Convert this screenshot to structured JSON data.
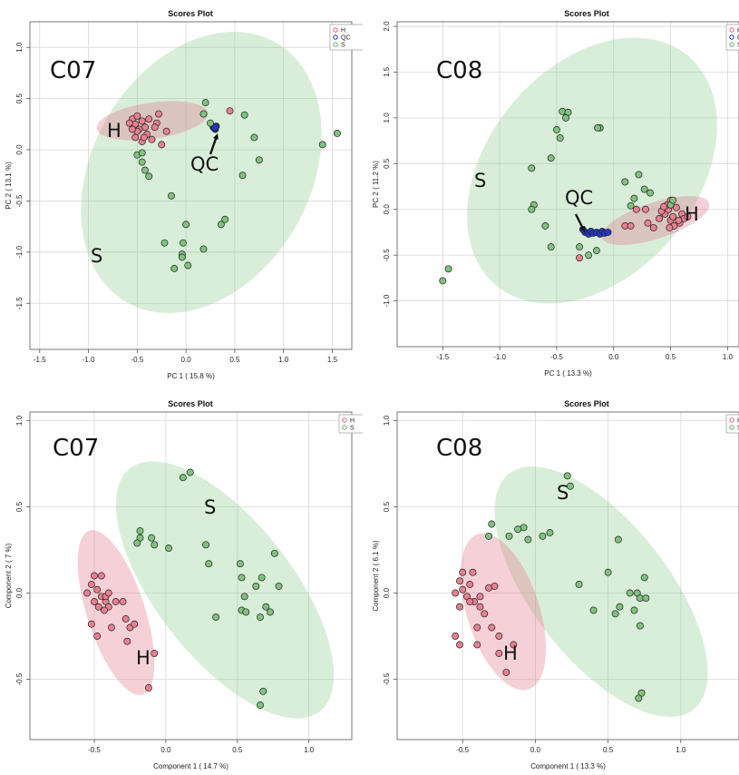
{
  "chart_data": [
    {
      "type": "scatter",
      "title": "Scores Plot",
      "xlabel": "PC 1 ( 15.8 %)",
      "ylabel": "PC 2 ( 13.1 %)",
      "xlim": [
        -1.6,
        1.7
      ],
      "ylim": [
        -1.95,
        1.25
      ],
      "xticks": [
        "-1.5",
        "-1.0",
        "-0.5",
        "0.0",
        "0.5",
        "1.0",
        "1.5"
      ],
      "yticks": [
        "1.0",
        "0.5",
        "0.0",
        "-0.5",
        "-1.0",
        "-1.5"
      ],
      "grid": true,
      "legend": "top-right",
      "panel_label": "C07",
      "annotations": [
        "H",
        "QC",
        "S"
      ],
      "series": [
        {
          "name": "H",
          "color": "#e0607a",
          "points": [
            [
              -0.55,
              0.3
            ],
            [
              -0.5,
              0.33
            ],
            [
              -0.45,
              0.28
            ],
            [
              -0.42,
              0.22
            ],
            [
              -0.4,
              0.15
            ],
            [
              -0.52,
              0.25
            ],
            [
              -0.48,
              0.2
            ],
            [
              -0.38,
              0.3
            ],
            [
              -0.3,
              0.26
            ],
            [
              -0.28,
              0.35
            ],
            [
              -0.2,
              0.18
            ],
            [
              -0.35,
              0.1
            ],
            [
              -0.45,
              0.08
            ],
            [
              -0.52,
              0.12
            ],
            [
              -0.58,
              0.26
            ],
            [
              -0.5,
              0.18
            ],
            [
              -0.43,
              0.12
            ],
            [
              -0.25,
              0.05
            ],
            [
              -0.32,
              0.22
            ],
            [
              0.45,
              0.38
            ],
            [
              -0.55,
              0.2
            ]
          ]
        },
        {
          "name": "QC",
          "color": "#2030c0",
          "points": [
            [
              0.28,
              0.22
            ],
            [
              0.3,
              0.2
            ],
            [
              0.31,
              0.23
            ],
            [
              0.29,
              0.21
            ],
            [
              0.3,
              0.22
            ]
          ]
        },
        {
          "name": "S",
          "color": "#60b060",
          "points": [
            [
              0.2,
              0.46
            ],
            [
              0.6,
              0.34
            ],
            [
              0.7,
              0.12
            ],
            [
              0.18,
              0.35
            ],
            [
              0.25,
              0.26
            ],
            [
              1.4,
              0.05
            ],
            [
              1.55,
              0.16
            ],
            [
              0.75,
              -0.1
            ],
            [
              0.58,
              -0.25
            ],
            [
              -0.5,
              -0.05
            ],
            [
              -0.45,
              -0.12
            ],
            [
              -0.42,
              -0.2
            ],
            [
              -0.38,
              -0.26
            ],
            [
              -0.45,
              -0.03
            ],
            [
              -0.15,
              -0.45
            ],
            [
              0.0,
              -0.73
            ],
            [
              0.4,
              -0.68
            ],
            [
              0.36,
              -0.73
            ],
            [
              -0.22,
              -0.91
            ],
            [
              -0.03,
              -0.91
            ],
            [
              0.18,
              -0.97
            ],
            [
              -0.04,
              -1.02
            ],
            [
              -0.04,
              -1.05
            ],
            [
              0.02,
              -1.13
            ],
            [
              -0.12,
              -1.16
            ]
          ]
        }
      ]
    },
    {
      "type": "scatter",
      "title": "Scores Plot",
      "xlabel": "PC 1 ( 13.3 %)",
      "ylabel": "PC 2 ( 11.2 %)",
      "xlim": [
        -1.9,
        1.1
      ],
      "ylim": [
        -1.5,
        2.05
      ],
      "xticks": [
        "-1.5",
        "-1.0",
        "-0.5",
        "0.0",
        "0.5",
        "1.0"
      ],
      "yticks": [
        "2.0",
        "1.5",
        "1.0",
        "0.5",
        "0.0",
        "-0.5",
        "-1.0"
      ],
      "grid": true,
      "legend": "top-right",
      "panel_label": "C08",
      "annotations": [
        "S",
        "QC",
        "H"
      ],
      "series": [
        {
          "name": "H",
          "color": "#e0607a",
          "points": [
            [
              0.4,
              -0.1
            ],
            [
              0.45,
              -0.05
            ],
            [
              0.48,
              0.0
            ],
            [
              0.5,
              -0.12
            ],
            [
              0.52,
              -0.08
            ],
            [
              0.55,
              0.02
            ],
            [
              0.58,
              -0.15
            ],
            [
              0.6,
              -0.05
            ],
            [
              0.47,
              0.05
            ],
            [
              0.53,
              -0.18
            ],
            [
              0.42,
              -0.02
            ],
            [
              0.62,
              -0.1
            ],
            [
              0.35,
              -0.2
            ],
            [
              0.3,
              -0.15
            ],
            [
              0.28,
              0.0
            ],
            [
              0.2,
              0.0
            ],
            [
              0.65,
              -0.08
            ],
            [
              0.5,
              0.1
            ],
            [
              0.57,
              -0.12
            ],
            [
              0.49,
              -0.2
            ],
            [
              -0.3,
              -0.53
            ],
            [
              0.1,
              -0.18
            ],
            [
              0.15,
              -0.18
            ],
            [
              0.44,
              0.03
            ]
          ]
        },
        {
          "name": "QC",
          "color": "#2030c0",
          "points": [
            [
              -0.25,
              -0.25
            ],
            [
              -0.22,
              -0.27
            ],
            [
              -0.2,
              -0.24
            ],
            [
              -0.18,
              -0.26
            ],
            [
              -0.15,
              -0.25
            ],
            [
              -0.12,
              -0.27
            ],
            [
              -0.1,
              -0.24
            ],
            [
              -0.08,
              -0.26
            ],
            [
              -0.05,
              -0.25
            ],
            [
              -0.27,
              -0.22
            ]
          ]
        },
        {
          "name": "S",
          "color": "#60b060",
          "points": [
            [
              -0.45,
              1.07
            ],
            [
              -0.4,
              1.06
            ],
            [
              -0.42,
              1.0
            ],
            [
              -0.5,
              0.87
            ],
            [
              -0.47,
              0.78
            ],
            [
              -0.12,
              0.89
            ],
            [
              -0.14,
              0.89
            ],
            [
              -0.55,
              0.56
            ],
            [
              -0.72,
              0.45
            ],
            [
              -0.7,
              0.05
            ],
            [
              -0.72,
              0.0
            ],
            [
              -0.6,
              -0.18
            ],
            [
              -0.55,
              -0.41
            ],
            [
              -0.3,
              -0.41
            ],
            [
              -0.15,
              -0.45
            ],
            [
              -0.22,
              -0.5
            ],
            [
              0.1,
              0.3
            ],
            [
              0.22,
              0.38
            ],
            [
              0.27,
              0.22
            ],
            [
              0.32,
              0.18
            ],
            [
              0.18,
              0.12
            ],
            [
              0.15,
              0.04
            ],
            [
              -1.5,
              -0.78
            ],
            [
              -1.45,
              -0.65
            ],
            [
              0.5,
              0.05
            ],
            [
              0.52,
              0.1
            ]
          ]
        }
      ]
    },
    {
      "type": "scatter",
      "title": "Scores Plot",
      "xlabel": "Component 1 ( 14.7 %)",
      "ylabel": "Component 2 ( 7 %)",
      "xlim": [
        -0.95,
        1.3
      ],
      "ylim": [
        -0.85,
        1.05
      ],
      "xticks": [
        "-0.5",
        "0.0",
        "0.5",
        "1.0"
      ],
      "yticks": [
        "1.0",
        "0.5",
        "0.0",
        "-0.5"
      ],
      "grid": true,
      "legend": "top-right",
      "panel_label": "C07",
      "annotations": [
        "S",
        "H"
      ],
      "series": [
        {
          "name": "H",
          "color": "#e0607a",
          "points": [
            [
              -0.5,
              0.1
            ],
            [
              -0.45,
              0.1
            ],
            [
              -0.52,
              0.05
            ],
            [
              -0.48,
              0.02
            ],
            [
              -0.45,
              -0.02
            ],
            [
              -0.42,
              -0.05
            ],
            [
              -0.5,
              -0.05
            ],
            [
              -0.55,
              0.0
            ],
            [
              -0.4,
              -0.08
            ],
            [
              -0.43,
              -0.1
            ],
            [
              -0.35,
              -0.05
            ],
            [
              -0.3,
              -0.05
            ],
            [
              -0.28,
              -0.15
            ],
            [
              -0.25,
              -0.2
            ],
            [
              -0.52,
              -0.18
            ],
            [
              -0.48,
              -0.25
            ],
            [
              -0.22,
              -0.18
            ],
            [
              -0.38,
              -0.2
            ],
            [
              -0.27,
              -0.28
            ],
            [
              -0.08,
              -0.35
            ],
            [
              -0.12,
              -0.55
            ],
            [
              -0.42,
              -0.02
            ],
            [
              -0.47,
              -0.08
            ],
            [
              -0.4,
              0.0
            ]
          ]
        },
        {
          "name": "S",
          "color": "#60b060",
          "points": [
            [
              0.12,
              0.67
            ],
            [
              0.17,
              0.7
            ],
            [
              -0.18,
              0.36
            ],
            [
              -0.18,
              0.32
            ],
            [
              -0.1,
              0.32
            ],
            [
              -0.08,
              0.28
            ],
            [
              0.02,
              0.26
            ],
            [
              -0.2,
              0.29
            ],
            [
              0.28,
              0.28
            ],
            [
              0.3,
              0.17
            ],
            [
              0.52,
              0.17
            ],
            [
              0.53,
              0.09
            ],
            [
              0.67,
              0.09
            ],
            [
              0.63,
              0.04
            ],
            [
              0.79,
              0.04
            ],
            [
              0.76,
              0.23
            ],
            [
              0.55,
              -0.02
            ],
            [
              0.7,
              -0.08
            ],
            [
              0.66,
              -0.14
            ],
            [
              0.73,
              -0.11
            ],
            [
              0.53,
              -0.1
            ],
            [
              0.56,
              -0.11
            ],
            [
              0.35,
              -0.14
            ],
            [
              0.68,
              -0.57
            ],
            [
              0.66,
              -0.65
            ]
          ]
        }
      ]
    },
    {
      "type": "scatter",
      "title": "Scores Plot",
      "xlabel": "Component 1 ( 13.3 %)",
      "ylabel": "Component 2 ( 6.1 %)",
      "xlim": [
        -0.95,
        1.4
      ],
      "ylim": [
        -0.85,
        1.05
      ],
      "xticks": [
        "-0.5",
        "0.0",
        "0.5",
        "1.0"
      ],
      "yticks": [
        "1.0",
        "0.5",
        "0.0",
        "-0.5"
      ],
      "grid": true,
      "legend": "top-right",
      "panel_label": "C08",
      "annotations": [
        "S",
        "H"
      ],
      "series": [
        {
          "name": "H",
          "color": "#e0607a",
          "points": [
            [
              -0.5,
              0.12
            ],
            [
              -0.43,
              0.12
            ],
            [
              -0.52,
              0.07
            ],
            [
              -0.45,
              0.05
            ],
            [
              -0.5,
              0.02
            ],
            [
              -0.55,
              0.0
            ],
            [
              -0.47,
              -0.02
            ],
            [
              -0.42,
              -0.05
            ],
            [
              -0.52,
              -0.08
            ],
            [
              -0.38,
              -0.08
            ],
            [
              -0.32,
              0.03
            ],
            [
              -0.28,
              0.04
            ],
            [
              -0.35,
              -0.12
            ],
            [
              -0.55,
              -0.25
            ],
            [
              -0.4,
              -0.2
            ],
            [
              -0.3,
              -0.2
            ],
            [
              -0.25,
              -0.25
            ],
            [
              -0.52,
              -0.3
            ],
            [
              -0.4,
              -0.3
            ],
            [
              -0.25,
              -0.35
            ],
            [
              -0.15,
              -0.3
            ],
            [
              -0.2,
              -0.46
            ],
            [
              -0.45,
              -0.05
            ],
            [
              -0.38,
              -0.02
            ]
          ]
        },
        {
          "name": "S",
          "color": "#60b060",
          "points": [
            [
              0.22,
              0.68
            ],
            [
              0.24,
              0.62
            ],
            [
              -0.08,
              0.38
            ],
            [
              -0.12,
              0.37
            ],
            [
              -0.05,
              0.31
            ],
            [
              -0.18,
              0.33
            ],
            [
              0.05,
              0.33
            ],
            [
              0.1,
              0.35
            ],
            [
              -0.3,
              0.4
            ],
            [
              -0.32,
              0.33
            ],
            [
              0.57,
              0.31
            ],
            [
              0.5,
              0.12
            ],
            [
              0.3,
              0.05
            ],
            [
              0.58,
              -0.08
            ],
            [
              0.55,
              -0.12
            ],
            [
              0.65,
              0.0
            ],
            [
              0.7,
              0.0
            ],
            [
              0.72,
              -0.03
            ],
            [
              0.76,
              -0.03
            ],
            [
              0.75,
              0.09
            ],
            [
              0.68,
              -0.1
            ],
            [
              0.72,
              -0.19
            ],
            [
              0.4,
              -0.1
            ],
            [
              0.73,
              -0.58
            ],
            [
              0.71,
              -0.61
            ]
          ]
        }
      ]
    }
  ]
}
